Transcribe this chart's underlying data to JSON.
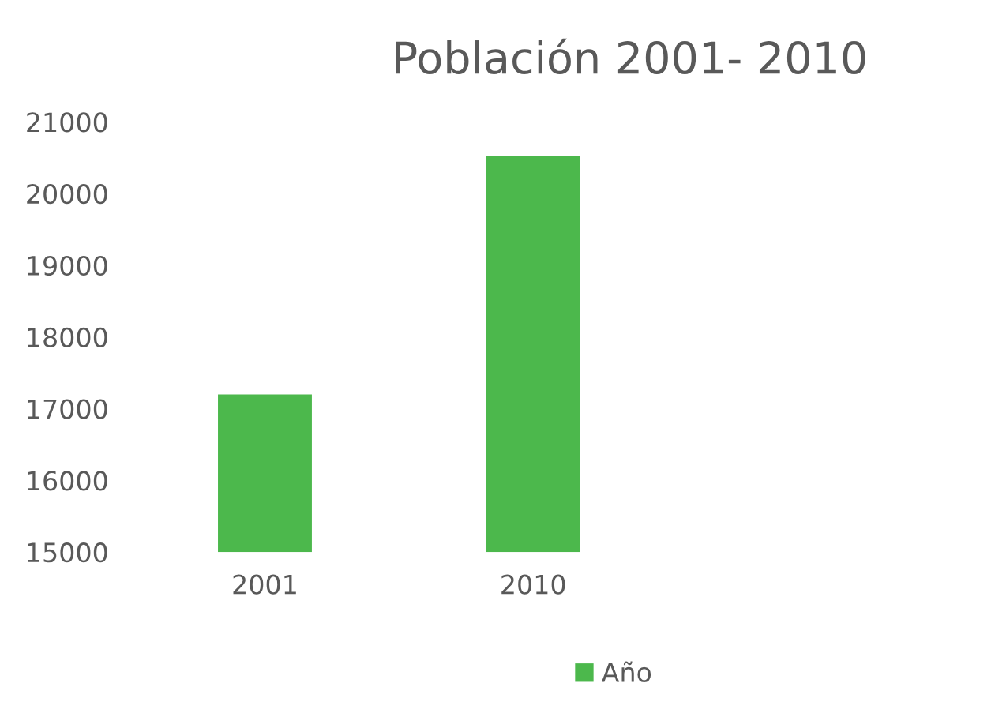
{
  "chart_data": {
    "type": "bar",
    "title": "Población 2001- 2010",
    "categories": [
      "2001",
      "2010"
    ],
    "series": [
      {
        "name": "Año",
        "color": "#4cb84c",
        "values": [
          17200,
          20520
        ]
      }
    ],
    "ylim": [
      15000,
      21000
    ],
    "yticks": [
      15000,
      16000,
      17000,
      18000,
      19000,
      20000,
      21000
    ],
    "grid": false,
    "legend": "bottom"
  }
}
